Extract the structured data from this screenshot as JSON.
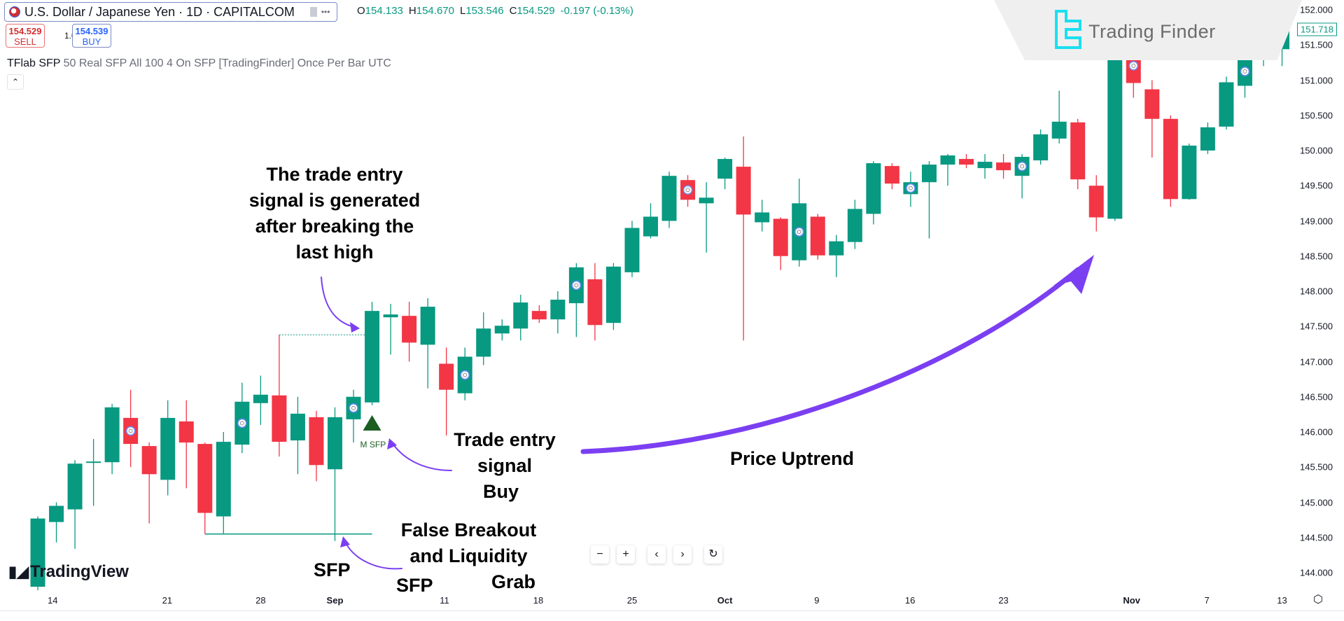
{
  "header": {
    "symbol": "U.S. Dollar / Japanese Yen · 1D · CAPITALCOM",
    "more": "•••",
    "ohlc": {
      "o_label": "O",
      "o": "154.133",
      "h_label": "H",
      "h": "154.670",
      "l_label": "L",
      "l": "153.546",
      "c_label": "C",
      "c": "154.529",
      "change": "-0.197 (-0.13%)"
    },
    "sell": {
      "price": "154.529",
      "label": "SELL"
    },
    "buy": {
      "price": "154.539",
      "label": "BUY"
    },
    "quantity": "1.0",
    "indicator_name": "TFlab SFP",
    "indicator_params": "50 Real SFP All 100 4 On SFP [TradingFinder] Once Per Bar UTC",
    "collapse_icon": "chevron-up-icon"
  },
  "watermark": {
    "text": "Trading Finder"
  },
  "logo": {
    "text": "TradingView"
  },
  "colors": {
    "up": "#089981",
    "down": "#f23645",
    "arrow": "#7b3ff2",
    "signal": "#1b5e20",
    "marker": "#6b8cff"
  },
  "price_axis": {
    "labels": [
      "152.000",
      "151.500",
      "151.000",
      "150.500",
      "150.000",
      "149.500",
      "149.000",
      "148.500",
      "148.000",
      "147.500",
      "147.000",
      "146.500",
      "146.000",
      "145.500",
      "145.000",
      "144.500",
      "144.000"
    ],
    "current_price": "151.718"
  },
  "time_axis": {
    "labels": [
      "14",
      "21",
      "28",
      "Sep",
      "11",
      "18",
      "25",
      "Oct",
      "9",
      "16",
      "23",
      "Nov",
      "7",
      "13"
    ]
  },
  "chart_data": {
    "type": "candlestick",
    "ylim": [
      144.0,
      152.0
    ],
    "candles": [
      [
        143.8,
        144.8,
        143.75,
        144.77
      ],
      [
        144.72,
        145.0,
        144.43,
        144.95
      ],
      [
        144.9,
        145.6,
        144.34,
        145.55
      ],
      [
        145.57,
        145.9,
        144.95,
        145.58
      ],
      [
        145.57,
        146.4,
        145.4,
        146.35
      ],
      [
        146.2,
        146.6,
        145.5,
        145.83
      ],
      [
        145.8,
        145.85,
        144.7,
        145.4
      ],
      [
        145.32,
        146.45,
        145.1,
        146.2
      ],
      [
        146.15,
        146.45,
        145.2,
        145.85
      ],
      [
        145.83,
        145.85,
        144.55,
        144.85
      ],
      [
        144.8,
        146.0,
        144.55,
        145.86
      ],
      [
        145.82,
        146.7,
        145.7,
        146.43
      ],
      [
        146.41,
        146.8,
        146.1,
        146.53
      ],
      [
        146.52,
        147.38,
        145.65,
        145.86
      ],
      [
        145.88,
        146.5,
        145.4,
        146.26
      ],
      [
        146.21,
        146.3,
        145.3,
        145.53
      ],
      [
        145.47,
        146.35,
        144.45,
        146.21
      ],
      [
        146.18,
        146.6,
        145.85,
        146.5
      ],
      [
        146.42,
        147.85,
        146.38,
        147.72
      ],
      [
        147.63,
        147.82,
        147.1,
        147.67
      ],
      [
        147.65,
        147.85,
        147.0,
        147.27
      ],
      [
        147.24,
        147.9,
        146.62,
        147.78
      ],
      [
        146.97,
        147.2,
        145.95,
        146.6
      ],
      [
        146.55,
        147.2,
        146.45,
        147.07
      ],
      [
        147.07,
        147.7,
        146.95,
        147.47
      ],
      [
        147.4,
        147.6,
        147.3,
        147.51
      ],
      [
        147.47,
        147.95,
        147.3,
        147.84
      ],
      [
        147.72,
        147.8,
        147.55,
        147.6
      ],
      [
        147.6,
        148.0,
        147.4,
        147.88
      ],
      [
        147.83,
        148.4,
        147.35,
        148.34
      ],
      [
        148.17,
        148.4,
        147.3,
        147.52
      ],
      [
        147.55,
        148.4,
        147.45,
        148.35
      ],
      [
        148.27,
        149.0,
        148.2,
        148.9
      ],
      [
        148.78,
        149.25,
        148.75,
        149.06
      ],
      [
        149.0,
        149.7,
        148.9,
        149.64
      ],
      [
        149.58,
        149.65,
        149.2,
        149.3
      ],
      [
        149.25,
        149.55,
        148.55,
        149.33
      ],
      [
        149.6,
        149.9,
        149.45,
        149.88
      ],
      [
        149.77,
        150.2,
        147.3,
        149.09
      ],
      [
        148.98,
        149.3,
        148.85,
        149.12
      ],
      [
        149.03,
        149.05,
        148.3,
        148.5
      ],
      [
        148.44,
        149.6,
        148.35,
        149.25
      ],
      [
        149.06,
        149.1,
        148.45,
        148.51
      ],
      [
        148.51,
        148.8,
        148.2,
        148.71
      ],
      [
        148.7,
        149.3,
        148.6,
        149.17
      ],
      [
        149.1,
        149.85,
        148.95,
        149.82
      ],
      [
        149.78,
        149.82,
        149.45,
        149.53
      ],
      [
        149.38,
        149.7,
        149.2,
        149.55
      ],
      [
        149.55,
        149.85,
        148.75,
        149.8
      ],
      [
        149.8,
        149.95,
        149.5,
        149.93
      ],
      [
        149.88,
        149.95,
        149.75,
        149.8
      ],
      [
        149.75,
        149.95,
        149.6,
        149.84
      ],
      [
        149.83,
        149.95,
        149.6,
        149.72
      ],
      [
        149.64,
        149.95,
        149.32,
        149.91
      ],
      [
        149.86,
        150.3,
        149.8,
        150.23
      ],
      [
        150.17,
        150.85,
        150.1,
        150.41
      ],
      [
        150.4,
        150.45,
        149.45,
        149.59
      ],
      [
        149.5,
        149.65,
        148.85,
        149.05
      ],
      [
        149.03,
        151.6,
        149.0,
        151.55
      ],
      [
        151.45,
        151.6,
        150.75,
        150.96
      ],
      [
        150.87,
        151.0,
        149.9,
        150.45
      ],
      [
        150.45,
        150.5,
        149.2,
        149.31
      ],
      [
        149.31,
        150.1,
        149.3,
        150.07
      ],
      [
        150.0,
        150.4,
        149.95,
        150.33
      ],
      [
        150.34,
        151.05,
        150.3,
        150.97
      ],
      [
        150.92,
        151.45,
        150.75,
        151.33
      ],
      [
        151.3,
        151.6,
        151.2,
        151.49
      ],
      [
        151.44,
        151.95,
        151.2,
        151.72
      ]
    ],
    "candle_fields": [
      "open",
      "high",
      "low",
      "close"
    ],
    "signal_marker_bars": [
      5,
      11,
      17,
      23,
      29,
      35,
      41,
      47,
      53,
      59,
      65
    ],
    "buy_signal_bar": 18,
    "buy_signal_label": "M SFP",
    "swing_high_level": 147.38,
    "swing_low_level": 144.55
  },
  "annotations": {
    "entry_after_high": [
      "The trade entry",
      "signal is generated",
      "after breaking the",
      "last high"
    ],
    "entry_signal": [
      "Trade entry",
      "signal",
      "Buy"
    ],
    "uptrend": "Price Uptrend",
    "false_breakout": [
      "False Breakout",
      "and Liquidity",
      "Grab"
    ],
    "sfp_1": "SFP",
    "sfp_2": "SFP"
  },
  "zoom_controls": {
    "zoom_out": "−",
    "zoom_in": "+",
    "scroll_left": "‹",
    "scroll_right": "›",
    "reset": "↻"
  },
  "settings_icon": "gear-icon"
}
